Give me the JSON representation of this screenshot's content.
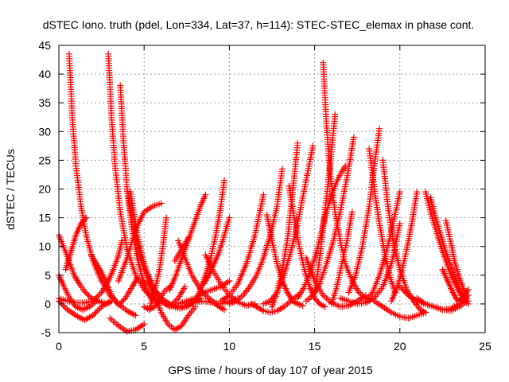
{
  "chart_data": {
    "type": "scatter",
    "title": "dSTEC Iono. truth (pdel, Lon=334, Lat=37, h=114): STEC-STEC_elemax in phase cont.",
    "xlabel": "GPS time / hours of day 107 of year 2015",
    "ylabel": "dSTEC  / TECUs",
    "xlim": [
      0,
      25
    ],
    "ylim": [
      -5,
      45
    ],
    "xticks": [
      0,
      5,
      10,
      15,
      20,
      25
    ],
    "yticks": [
      -5,
      0,
      5,
      10,
      15,
      20,
      25,
      30,
      35,
      40,
      45
    ],
    "grid": true,
    "marker": "+",
    "color": "#ff0000",
    "series": [
      {
        "x": [
          0.0,
          0.3,
          0.6,
          1.0,
          1.4,
          1.8,
          2.2
        ],
        "y": [
          5.0,
          3.0,
          1.2,
          -0.5,
          -1.0,
          -0.5,
          0.5
        ]
      },
      {
        "x": [
          0.0,
          0.4,
          0.9,
          1.2,
          1.5,
          1.9,
          2.2,
          2.6,
          2.8,
          3.1
        ],
        "y": [
          12.0,
          9.0,
          5.0,
          3.5,
          2.2,
          1.0,
          0.6,
          0.2,
          0.0,
          0.5
        ]
      },
      {
        "x": [
          0.0,
          0.5,
          1.0,
          1.5,
          2.0,
          2.5,
          2.9,
          3.2,
          3.5,
          3.7
        ],
        "y": [
          1.0,
          0.5,
          0.2,
          0.2,
          0.5,
          2.0,
          4.0,
          6.0,
          8.5,
          11.0
        ]
      },
      {
        "x": [
          0.4,
          0.6,
          0.8,
          1.0,
          1.3,
          1.6
        ],
        "y": [
          6.0,
          8.0,
          10.0,
          12.0,
          14.0,
          15.0
        ]
      },
      {
        "x": [
          0.6,
          0.8,
          1.0,
          1.3,
          1.6,
          2.0,
          2.5,
          3.0,
          3.5,
          4.0,
          4.5
        ],
        "y": [
          43.5,
          32.0,
          24.0,
          17.0,
          12.0,
          7.5,
          4.0,
          1.5,
          0.0,
          -1.2,
          -2.0
        ]
      },
      {
        "x": [
          0.0,
          0.5,
          1.0,
          1.5,
          2.0,
          2.5,
          3.0
        ],
        "y": [
          0.5,
          -1.0,
          -2.0,
          -2.8,
          -2.0,
          -0.5,
          0.5
        ]
      },
      {
        "x": [
          2.9,
          3.1,
          3.3,
          3.6,
          4.0,
          4.5,
          5.0,
          5.5,
          6.0
        ],
        "y": [
          43.5,
          32.0,
          24.0,
          16.0,
          9.5,
          5.0,
          2.5,
          1.0,
          0.2
        ]
      },
      {
        "x": [
          1.9,
          2.2,
          2.5,
          2.8,
          3.1,
          3.5,
          3.9,
          4.3,
          4.6
        ],
        "y": [
          8.5,
          7.0,
          5.5,
          3.5,
          1.5,
          -0.2,
          1.0,
          3.0,
          4.5
        ]
      },
      {
        "x": [
          3.6,
          3.8,
          4.0,
          4.3,
          4.6,
          4.9,
          5.2,
          5.5
        ],
        "y": [
          38.0,
          28.0,
          20.0,
          13.0,
          8.0,
          4.5,
          2.0,
          0.5
        ]
      },
      {
        "x": [
          3.0,
          3.5,
          4.0,
          4.5,
          5.0
        ],
        "y": [
          -2.5,
          -3.8,
          -4.8,
          -4.5,
          -3.5
        ]
      },
      {
        "x": [
          3.5,
          4.0,
          4.5,
          5.0,
          5.5,
          6.0
        ],
        "y": [
          4.0,
          8.0,
          13.0,
          16.0,
          17.0,
          17.5
        ]
      },
      {
        "x": [
          4.0,
          4.3,
          4.6,
          5.0,
          5.5,
          6.0,
          6.5,
          7.0,
          7.5,
          8.0
        ],
        "y": [
          20.0,
          15.0,
          10.5,
          6.0,
          3.0,
          1.0,
          0.0,
          -0.5,
          -0.3,
          0.5
        ]
      },
      {
        "x": [
          4.2,
          4.6,
          5.0,
          5.5,
          6.0,
          6.5,
          7.0,
          7.4
        ],
        "y": [
          19.5,
          12.0,
          7.0,
          3.0,
          0.5,
          -0.5,
          1.0,
          3.0
        ]
      },
      {
        "x": [
          5.0,
          5.3,
          5.6,
          5.9,
          6.2,
          6.5
        ],
        "y": [
          -0.5,
          -1.0,
          -0.5,
          0.8,
          2.2,
          3.0
        ]
      },
      {
        "x": [
          5.3,
          5.6,
          5.9,
          6.1,
          6.3
        ],
        "y": [
          -1.0,
          2.0,
          6.0,
          10.0,
          15.0
        ]
      },
      {
        "x": [
          5.2,
          5.6,
          6.0,
          6.4,
          6.8,
          7.2,
          7.6,
          8.0
        ],
        "y": [
          4.0,
          1.5,
          -1.5,
          -3.5,
          -4.5,
          -3.8,
          -2.0,
          -0.5
        ]
      },
      {
        "x": [
          6.0,
          6.3,
          6.7,
          7.1,
          7.5,
          7.9,
          8.3
        ],
        "y": [
          0.5,
          0.0,
          -0.5,
          -0.8,
          -0.5,
          0.3,
          1.0
        ]
      },
      {
        "x": [
          6.5,
          6.8,
          7.1,
          7.4,
          7.7,
          8.0,
          8.3,
          8.6
        ],
        "y": [
          2.5,
          4.5,
          7.0,
          9.5,
          12.0,
          14.5,
          17.0,
          19.0
        ]
      },
      {
        "x": [
          7.0,
          7.4,
          7.8,
          8.2,
          8.6,
          9.0,
          9.4,
          9.7
        ],
        "y": [
          11.0,
          8.0,
          5.0,
          3.0,
          1.5,
          0.5,
          -0.5,
          -1.0
        ]
      },
      {
        "x": [
          6.8,
          7.0,
          7.2,
          7.4,
          7.6
        ],
        "y": [
          7.5,
          8.5,
          9.5,
          10.5,
          11.5
        ]
      },
      {
        "x": [
          7.0,
          7.5,
          8.0,
          8.5,
          9.0,
          9.5,
          10.0
        ],
        "y": [
          0.0,
          0.5,
          1.0,
          2.0,
          2.5,
          3.0,
          4.0
        ]
      },
      {
        "x": [
          8.0,
          8.3,
          8.6,
          8.9,
          9.2,
          9.5,
          9.7
        ],
        "y": [
          0.5,
          2.5,
          5.0,
          8.0,
          12.0,
          17.0,
          21.5
        ]
      },
      {
        "x": [
          7.5,
          8.0,
          8.5,
          9.0,
          9.5,
          10.0,
          10.5
        ],
        "y": [
          0.0,
          0.2,
          0.5,
          0.2,
          0.0,
          0.5,
          1.0
        ]
      },
      {
        "x": [
          8.5,
          8.8,
          9.1,
          9.4,
          9.7,
          10.0
        ],
        "y": [
          3.5,
          5.0,
          7.0,
          9.0,
          12.0,
          15.0
        ]
      },
      {
        "x": [
          8.6,
          9.0,
          9.5,
          10.0,
          10.5,
          11.0,
          11.5
        ],
        "y": [
          8.5,
          6.0,
          3.5,
          1.5,
          0.3,
          -0.3,
          0.0
        ]
      },
      {
        "x": [
          9.5,
          10.0,
          10.5,
          11.0,
          11.5,
          12.0
        ],
        "y": [
          0.5,
          1.5,
          3.5,
          7.0,
          12.0,
          19.0
        ]
      },
      {
        "x": [
          10.0,
          10.4,
          10.8,
          11.2,
          11.6,
          12.0,
          12.4,
          12.8,
          13.1
        ],
        "y": [
          0.0,
          0.5,
          1.5,
          3.0,
          5.0,
          8.0,
          12.0,
          17.0,
          23.5
        ]
      },
      {
        "x": [
          11.3,
          11.6,
          12.0,
          12.4,
          12.8,
          13.2,
          13.6,
          14.0
        ],
        "y": [
          0.0,
          -0.5,
          -1.2,
          -1.5,
          -1.2,
          -0.5,
          0.5,
          1.5
        ]
      },
      {
        "x": [
          12.2,
          12.5,
          12.8,
          13.1,
          13.4,
          13.7,
          14.0,
          14.3
        ],
        "y": [
          15.5,
          11.0,
          7.0,
          4.0,
          2.0,
          0.5,
          0.0,
          -0.3
        ]
      },
      {
        "x": [
          12.0,
          12.4,
          12.8,
          13.2,
          13.6,
          14.0,
          14.4,
          14.9
        ],
        "y": [
          0.0,
          0.5,
          2.0,
          5.0,
          9.0,
          14.0,
          20.0,
          27.5
        ]
      },
      {
        "x": [
          12.5,
          12.8,
          13.1,
          13.4,
          13.7,
          14.0
        ],
        "y": [
          -0.5,
          2.0,
          6.0,
          11.0,
          19.0,
          28.0
        ]
      },
      {
        "x": [
          13.5,
          13.8,
          14.1,
          14.4,
          14.7,
          15.0,
          15.3,
          15.6
        ],
        "y": [
          20.5,
          15.0,
          10.0,
          6.0,
          3.0,
          1.0,
          0.0,
          -0.5
        ]
      },
      {
        "x": [
          14.0,
          14.4,
          14.8,
          15.2,
          15.6,
          16.0,
          16.4,
          16.8
        ],
        "y": [
          1.0,
          3.0,
          6.0,
          10.0,
          15.0,
          19.0,
          22.0,
          24.0
        ]
      },
      {
        "x": [
          14.5,
          14.9,
          15.3,
          15.7,
          16.1,
          16.5,
          16.9,
          17.3
        ],
        "y": [
          0.5,
          1.5,
          3.5,
          7.0,
          11.0,
          16.0,
          22.0,
          29.0
        ]
      },
      {
        "x": [
          15.5,
          15.7,
          15.9,
          16.2,
          16.5,
          16.8,
          17.2,
          17.6,
          18.0
        ],
        "y": [
          42.0,
          31.0,
          23.0,
          16.0,
          11.0,
          7.0,
          4.0,
          2.0,
          1.0
        ]
      },
      {
        "x": [
          15.0,
          15.3,
          15.6,
          15.9,
          16.2
        ],
        "y": [
          2.0,
          8.0,
          16.0,
          24.0,
          33.0
        ]
      },
      {
        "x": [
          16.0,
          16.3,
          16.6,
          16.9,
          17.2
        ],
        "y": [
          0.0,
          3.0,
          7.0,
          11.0,
          16.0
        ]
      },
      {
        "x": [
          14.5,
          15.0,
          15.5,
          16.0,
          16.5,
          17.0,
          17.5,
          18.0
        ],
        "y": [
          8.0,
          4.0,
          1.5,
          0.2,
          -0.5,
          -0.3,
          0.5,
          1.5
        ]
      },
      {
        "x": [
          16.5,
          17.0,
          17.5,
          18.0,
          18.5,
          19.0,
          19.5,
          20.0
        ],
        "y": [
          1.0,
          0.5,
          0.0,
          0.2,
          1.0,
          3.0,
          7.0,
          14.0
        ]
      },
      {
        "x": [
          17.0,
          17.4,
          17.8,
          18.2,
          18.5,
          18.8
        ],
        "y": [
          2.0,
          5.0,
          10.0,
          17.0,
          24.0,
          30.5
        ]
      },
      {
        "x": [
          18.0,
          18.4,
          18.8,
          19.2,
          19.6,
          20.0
        ],
        "y": [
          0.5,
          2.0,
          5.0,
          9.0,
          14.0,
          19.5
        ]
      },
      {
        "x": [
          19.0,
          19.3,
          19.6,
          20.0,
          20.4,
          20.8,
          21.2,
          21.5
        ],
        "y": [
          25.0,
          17.0,
          11.0,
          6.0,
          2.5,
          0.5,
          -1.0,
          -1.5
        ]
      },
      {
        "x": [
          18.2,
          18.5,
          18.8,
          19.1,
          19.4,
          19.7
        ],
        "y": [
          27.0,
          20.0,
          14.0,
          9.0,
          5.0,
          2.0
        ]
      },
      {
        "x": [
          18.5,
          19.0,
          19.5,
          20.0,
          20.5,
          21.0,
          21.5
        ],
        "y": [
          0.5,
          -0.5,
          -1.5,
          -2.2,
          -2.5,
          -2.0,
          -1.5
        ]
      },
      {
        "x": [
          19.5,
          19.8,
          20.1,
          20.4,
          20.7,
          21.0
        ],
        "y": [
          0.5,
          2.5,
          5.5,
          9.5,
          14.0,
          19.5
        ]
      },
      {
        "x": [
          21.5,
          21.8,
          22.1,
          22.4,
          22.7,
          23.0,
          23.4,
          23.8,
          24.0
        ],
        "y": [
          19.5,
          16.0,
          13.0,
          10.0,
          7.5,
          5.0,
          2.5,
          0.5,
          0.0
        ]
      },
      {
        "x": [
          21.8,
          22.1,
          22.4,
          22.7,
          23.0,
          23.3,
          23.6,
          23.9
        ],
        "y": [
          18.5,
          15.0,
          12.0,
          9.0,
          6.5,
          4.0,
          2.0,
          0.5
        ]
      },
      {
        "x": [
          22.7,
          23.0,
          23.2,
          23.5,
          23.8,
          24.0
        ],
        "y": [
          14.5,
          10.5,
          7.5,
          4.5,
          2.0,
          0.5
        ]
      },
      {
        "x": [
          22.5,
          22.8,
          23.1,
          23.4,
          23.7,
          24.0
        ],
        "y": [
          6.0,
          4.0,
          2.0,
          0.5,
          1.0,
          2.5
        ]
      },
      {
        "x": [
          21.0,
          21.5,
          22.0,
          22.5,
          23.0,
          23.5,
          24.0
        ],
        "y": [
          1.0,
          0.0,
          -0.5,
          -1.0,
          -0.8,
          0.0,
          1.5
        ]
      },
      {
        "x": [
          20.0,
          20.5,
          21.0,
          21.5,
          22.0,
          22.5,
          23.0,
          23.5,
          23.9
        ],
        "y": [
          3.0,
          1.5,
          0.5,
          0.0,
          -0.5,
          -1.0,
          -1.2,
          -0.5,
          0.5
        ]
      }
    ]
  }
}
